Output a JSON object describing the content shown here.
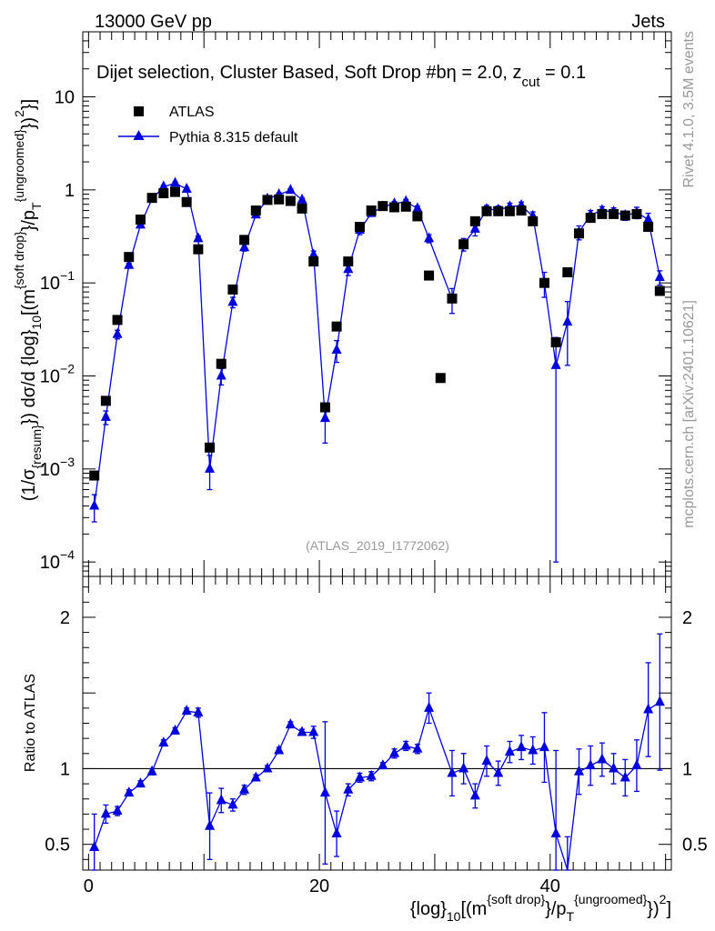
{
  "header": {
    "energy_label": "13000 GeV pp",
    "process_label": "Jets",
    "side_label_rivet": "Rivet 4.1.0,  3.5M events",
    "side_label_site": "mcplots.cern.ch [arXiv:2401.10621]"
  },
  "colors": {
    "data": "#000000",
    "mc": "#0000dd",
    "watermark": "#999999",
    "axis": "#000000"
  },
  "chart_data": [
    {
      "type": "scatter",
      "panel": "main",
      "title_text": "Dijet selection, Cluster Based, Soft Drop #b",
      "title_beta": "η = 2.0, z",
      "title_cut_sub": "cut",
      "title_zcut_val": " = 0.1",
      "watermark": "(ATLAS_2019_I1772062)",
      "yscale": "log",
      "ylim": [
        7e-05,
        50
      ],
      "xlim": [
        -0.5,
        50.5
      ],
      "ylabel_parts": {
        "lead": "(1/σ",
        "sub1": "{resum}",
        "mid": "}) dσ/d {log}",
        "sub2": "10",
        "tail": "[(m",
        "sup1": "{soft drop}",
        "mid2": "}/p",
        "sub3": "T",
        "sup2": "{ungroomed}",
        "end": "})",
        "sup3": "2",
        "close": "}]"
      },
      "y_ticks": [
        {
          "value": 0.0001,
          "base": "10",
          "exp": "−4"
        },
        {
          "value": 0.001,
          "base": "10",
          "exp": "−3"
        },
        {
          "value": 0.01,
          "base": "10",
          "exp": "−2"
        },
        {
          "value": 0.1,
          "base": "10",
          "exp": "−1"
        },
        {
          "value": 1,
          "label": "1"
        },
        {
          "value": 10,
          "label": "10"
        }
      ],
      "legend": [
        {
          "name": "ATLAS",
          "marker": "square"
        },
        {
          "name": "Pythia 8.315 default",
          "marker": "triangle"
        }
      ],
      "series": [
        {
          "name": "ATLAS",
          "x": [
            0.5,
            1.5,
            2.5,
            3.5,
            4.5,
            5.5,
            6.5,
            7.5,
            8.5,
            9.5,
            10.5,
            11.5,
            12.5,
            13.5,
            14.5,
            15.5,
            16.5,
            17.5,
            18.5,
            19.5,
            20.5,
            21.5,
            22.5,
            23.5,
            24.5,
            25.5,
            26.5,
            27.5,
            28.5,
            29.5,
            30.5,
            31.5,
            32.5,
            33.5,
            34.5,
            35.5,
            36.5,
            37.5,
            38.5,
            39.5,
            40.5,
            41.5,
            42.5,
            43.5,
            44.5,
            45.5,
            46.5,
            47.5,
            48.5,
            49.5
          ],
          "y": [
            0.00085,
            0.0054,
            0.04,
            0.19,
            0.48,
            0.82,
            0.92,
            0.95,
            0.74,
            0.23,
            0.0017,
            0.0135,
            0.085,
            0.29,
            0.6,
            0.78,
            0.79,
            0.76,
            0.63,
            0.17,
            0.0046,
            0.034,
            0.17,
            0.4,
            0.6,
            0.67,
            0.65,
            0.66,
            0.52,
            0.12,
            0.0095,
            0.068,
            0.26,
            0.46,
            0.59,
            0.59,
            0.59,
            0.6,
            0.46,
            0.1,
            0.023,
            0.13,
            0.34,
            0.5,
            0.55,
            0.55,
            0.53,
            0.55,
            0.4,
            0.082
          ]
        },
        {
          "name": "Pythia 8.315 default",
          "x": [
            0.5,
            1.5,
            2.5,
            3.5,
            4.5,
            5.5,
            6.5,
            7.5,
            8.5,
            9.5,
            10.5,
            11.5,
            12.5,
            13.5,
            14.5,
            15.5,
            16.5,
            17.5,
            18.5,
            19.5,
            20.5,
            21.5,
            22.5,
            23.5,
            24.5,
            25.5,
            26.5,
            27.5,
            28.5,
            29.5,
            31.5,
            32.5,
            33.5,
            34.5,
            35.5,
            36.5,
            37.5,
            38.5,
            39.5,
            40.5,
            41.5,
            42.5,
            43.5,
            44.5,
            45.5,
            46.5,
            47.5,
            48.5,
            49.5
          ],
          "y": [
            0.0004,
            0.0036,
            0.028,
            0.155,
            0.42,
            0.8,
            1.08,
            1.18,
            1.02,
            0.3,
            0.001,
            0.01,
            0.062,
            0.24,
            0.54,
            0.8,
            0.89,
            0.99,
            0.78,
            0.2,
            0.0035,
            0.019,
            0.14,
            0.37,
            0.56,
            0.66,
            0.71,
            0.75,
            0.63,
            0.3,
            0.067,
            0.26,
            0.38,
            0.62,
            0.61,
            0.66,
            0.68,
            0.52,
            0.1,
            0.013,
            0.038,
            0.35,
            0.54,
            0.6,
            0.58,
            0.53,
            0.57,
            0.48,
            0.115
          ],
          "yerr": [
            0.00013,
            0.0006,
            0.003,
            0.008,
            0.02,
            0.03,
            0.04,
            0.04,
            0.04,
            0.02,
            0.0004,
            0.002,
            0.008,
            0.02,
            0.03,
            0.03,
            0.04,
            0.04,
            0.04,
            0.02,
            0.0016,
            0.005,
            0.02,
            0.04,
            0.04,
            0.04,
            0.04,
            0.04,
            0.04,
            0.03,
            0.02,
            0.04,
            0.06,
            0.06,
            0.06,
            0.06,
            0.06,
            0.06,
            0.03,
            0.0129,
            0.025,
            0.06,
            0.06,
            0.06,
            0.06,
            0.06,
            0.08,
            0.08,
            0.02
          ]
        }
      ],
      "x_tick_labels": [
        "0",
        "20",
        "40"
      ],
      "x_ticks": [
        0,
        20,
        40
      ]
    },
    {
      "type": "line",
      "panel": "ratio",
      "ylabel": "Ratio to ATLAS",
      "ylim": [
        0.33,
        2.27
      ],
      "xlim": [
        -0.5,
        50.5
      ],
      "xlabel_parts": {
        "lead": "{log}",
        "sub1": "10",
        "mid": "[(m",
        "sup1": "{soft drop}",
        "mid2": "}/p",
        "sub2": "T",
        "sup2": "{ungroomed}",
        "end": "})",
        "sup3": "2",
        "close": "]"
      },
      "y_ticks": [
        {
          "value": 0.5,
          "label": "0.5"
        },
        {
          "value": 1,
          "label": "1"
        },
        {
          "value": 2,
          "label": "2"
        }
      ],
      "x_ticks": [
        0,
        20,
        40
      ],
      "x_tick_labels": [
        "0",
        "20",
        "40"
      ],
      "reference_line": 1,
      "series": [
        {
          "name": "Pythia 8.315 default / ATLAS",
          "x": [
            0.5,
            1.5,
            2.5,
            3.5,
            4.5,
            5.5,
            6.5,
            7.5,
            8.5,
            9.5,
            10.5,
            11.5,
            12.5,
            13.5,
            14.5,
            15.5,
            16.5,
            17.5,
            18.5,
            19.5,
            20.5,
            21.5,
            22.5,
            23.5,
            24.5,
            25.5,
            26.5,
            27.5,
            28.5,
            29.5,
            31.5,
            32.5,
            33.5,
            34.5,
            35.5,
            36.5,
            37.5,
            38.5,
            39.5,
            40.5,
            41.5,
            42.5,
            43.5,
            44.5,
            45.5,
            46.5,
            47.5,
            48.5,
            49.5
          ],
          "y": [
            0.48,
            0.7,
            0.72,
            0.84,
            0.9,
            0.98,
            1.17,
            1.25,
            1.38,
            1.37,
            0.62,
            0.79,
            0.76,
            0.86,
            0.94,
            1.0,
            1.12,
            1.29,
            1.24,
            1.24,
            0.84,
            0.57,
            0.86,
            0.94,
            0.95,
            1.02,
            1.1,
            1.15,
            1.13,
            1.4,
            0.97,
            1.0,
            0.82,
            1.05,
            0.97,
            1.11,
            1.14,
            1.12,
            1.14,
            0.57,
            0.3,
            0.98,
            1.02,
            1.06,
            1.0,
            0.94,
            1.02,
            1.39,
            1.44
          ],
          "yerr": [
            0.22,
            0.06,
            0.03,
            0.02,
            0.02,
            0.02,
            0.02,
            0.02,
            0.02,
            0.03,
            0.22,
            0.08,
            0.04,
            0.03,
            0.02,
            0.02,
            0.02,
            0.02,
            0.02,
            0.04,
            0.47,
            0.15,
            0.04,
            0.03,
            0.03,
            0.02,
            0.03,
            0.03,
            0.03,
            0.1,
            0.15,
            0.1,
            0.08,
            0.1,
            0.08,
            0.07,
            0.08,
            0.09,
            0.23,
            0.55,
            0.25,
            0.15,
            0.13,
            0.11,
            0.1,
            0.12,
            0.17,
            0.31,
            0.45
          ]
        }
      ]
    }
  ]
}
